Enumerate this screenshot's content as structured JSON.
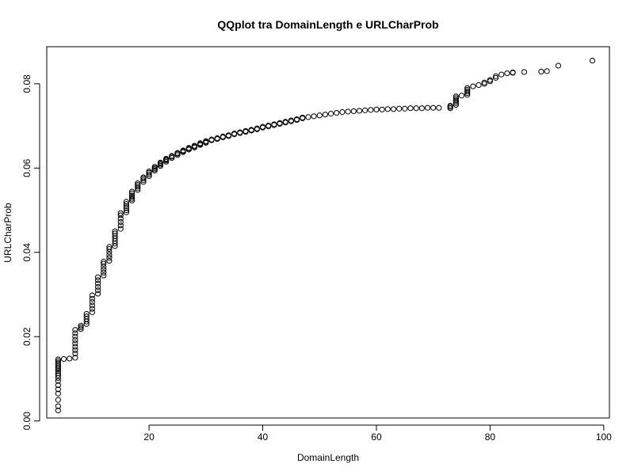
{
  "chart_data": {
    "type": "scatter",
    "title": "QQplot tra DomainLength e URLCharProb",
    "xlabel": "DomainLength",
    "ylabel": "URLCharProb",
    "xlim": [
      2,
      101
    ],
    "ylim": [
      0.0007,
      0.0888
    ],
    "xticks": [
      20,
      40,
      60,
      80,
      100
    ],
    "yticks": [
      0.0,
      0.02,
      0.04,
      0.06,
      0.08
    ],
    "xtick_labels": [
      "20",
      "40",
      "60",
      "80",
      "100"
    ],
    "ytick_labels": [
      "0.00",
      "0.02",
      "0.04",
      "0.06",
      "0.08"
    ],
    "grid": false,
    "legend": "none",
    "marker": "open-circle",
    "points": [
      [
        4,
        0.0025
      ],
      [
        4,
        0.0035
      ],
      [
        4,
        0.005
      ],
      [
        4,
        0.0065
      ],
      [
        4,
        0.0075
      ],
      [
        4,
        0.0085
      ],
      [
        4,
        0.0095
      ],
      [
        4,
        0.0102
      ],
      [
        4,
        0.0108
      ],
      [
        4,
        0.0113
      ],
      [
        4,
        0.0118
      ],
      [
        4,
        0.0122
      ],
      [
        4,
        0.0126
      ],
      [
        4,
        0.013
      ],
      [
        4,
        0.0134
      ],
      [
        4,
        0.0138
      ],
      [
        4,
        0.0142
      ],
      [
        4,
        0.0146
      ],
      [
        5,
        0.0147
      ],
      [
        6,
        0.0148
      ],
      [
        7,
        0.015
      ],
      [
        7,
        0.016
      ],
      [
        7,
        0.0168
      ],
      [
        7,
        0.0176
      ],
      [
        7,
        0.0184
      ],
      [
        7,
        0.0192
      ],
      [
        7,
        0.02
      ],
      [
        7,
        0.0208
      ],
      [
        7,
        0.0216
      ],
      [
        8,
        0.0218
      ],
      [
        8,
        0.0222
      ],
      [
        8,
        0.0226
      ],
      [
        9,
        0.023
      ],
      [
        9,
        0.0236
      ],
      [
        9,
        0.0242
      ],
      [
        9,
        0.0248
      ],
      [
        9,
        0.0254
      ],
      [
        10,
        0.0258
      ],
      [
        10,
        0.0266
      ],
      [
        10,
        0.0274
      ],
      [
        10,
        0.0282
      ],
      [
        10,
        0.029
      ],
      [
        10,
        0.0298
      ],
      [
        11,
        0.0302
      ],
      [
        11,
        0.031
      ],
      [
        11,
        0.0318
      ],
      [
        11,
        0.0326
      ],
      [
        11,
        0.0334
      ],
      [
        11,
        0.0341
      ],
      [
        12,
        0.0345
      ],
      [
        12,
        0.0352
      ],
      [
        12,
        0.0359
      ],
      [
        12,
        0.0366
      ],
      [
        12,
        0.0373
      ],
      [
        12,
        0.0378
      ],
      [
        13,
        0.038
      ],
      [
        13,
        0.0387
      ],
      [
        13,
        0.0394
      ],
      [
        13,
        0.0401
      ],
      [
        13,
        0.0408
      ],
      [
        13,
        0.0413
      ],
      [
        14,
        0.0415
      ],
      [
        14,
        0.0421
      ],
      [
        14,
        0.0427
      ],
      [
        14,
        0.0433
      ],
      [
        14,
        0.0439
      ],
      [
        14,
        0.0445
      ],
      [
        14,
        0.045
      ],
      [
        15,
        0.0456
      ],
      [
        15,
        0.0464
      ],
      [
        15,
        0.0472
      ],
      [
        15,
        0.048
      ],
      [
        15,
        0.0488
      ],
      [
        15,
        0.0493
      ],
      [
        16,
        0.0495
      ],
      [
        16,
        0.05
      ],
      [
        16,
        0.0505
      ],
      [
        16,
        0.051
      ],
      [
        16,
        0.0515
      ],
      [
        16,
        0.052
      ],
      [
        17,
        0.0523
      ],
      [
        17,
        0.0527
      ],
      [
        17,
        0.0531
      ],
      [
        17,
        0.0535
      ],
      [
        17,
        0.054
      ],
      [
        17,
        0.0544
      ],
      [
        18,
        0.0548
      ],
      [
        18,
        0.0552
      ],
      [
        18,
        0.0556
      ],
      [
        18,
        0.056
      ],
      [
        18,
        0.0564
      ],
      [
        19,
        0.0567
      ],
      [
        19,
        0.0571
      ],
      [
        19,
        0.0575
      ],
      [
        19,
        0.0578
      ],
      [
        20,
        0.0581
      ],
      [
        20,
        0.0585
      ],
      [
        20,
        0.0589
      ],
      [
        20,
        0.0592
      ],
      [
        21,
        0.0594
      ],
      [
        21,
        0.0597
      ],
      [
        21,
        0.06
      ],
      [
        21,
        0.0603
      ],
      [
        22,
        0.0605
      ],
      [
        22,
        0.0608
      ],
      [
        22,
        0.0611
      ],
      [
        22,
        0.0613
      ],
      [
        23,
        0.0615
      ],
      [
        23,
        0.0618
      ],
      [
        23,
        0.062
      ],
      [
        23,
        0.0622
      ],
      [
        24,
        0.0624
      ],
      [
        24,
        0.0627
      ],
      [
        24,
        0.0629
      ],
      [
        25,
        0.0631
      ],
      [
        25,
        0.0634
      ],
      [
        25,
        0.0636
      ],
      [
        26,
        0.0638
      ],
      [
        26,
        0.064
      ],
      [
        26,
        0.0642
      ],
      [
        27,
        0.0644
      ],
      [
        27,
        0.0646
      ],
      [
        27,
        0.0648
      ],
      [
        28,
        0.0649
      ],
      [
        28,
        0.0651
      ],
      [
        28,
        0.0653
      ],
      [
        29,
        0.0655
      ],
      [
        29,
        0.0657
      ],
      [
        29,
        0.0659
      ],
      [
        30,
        0.066
      ],
      [
        30,
        0.0662
      ],
      [
        30,
        0.0664
      ],
      [
        31,
        0.0666
      ],
      [
        31,
        0.0668
      ],
      [
        32,
        0.0669
      ],
      [
        32,
        0.0671
      ],
      [
        33,
        0.0673
      ],
      [
        33,
        0.0675
      ],
      [
        34,
        0.0676
      ],
      [
        34,
        0.0678
      ],
      [
        35,
        0.068
      ],
      [
        35,
        0.0682
      ],
      [
        36,
        0.0683
      ],
      [
        36,
        0.0685
      ],
      [
        37,
        0.0686
      ],
      [
        37,
        0.0688
      ],
      [
        38,
        0.0689
      ],
      [
        38,
        0.0691
      ],
      [
        39,
        0.0692
      ],
      [
        39,
        0.0694
      ],
      [
        40,
        0.0696
      ],
      [
        40,
        0.0698
      ],
      [
        41,
        0.0699
      ],
      [
        41,
        0.0701
      ],
      [
        42,
        0.0702
      ],
      [
        42,
        0.0704
      ],
      [
        43,
        0.0705
      ],
      [
        43,
        0.0707
      ],
      [
        44,
        0.0708
      ],
      [
        44,
        0.071
      ],
      [
        45,
        0.0711
      ],
      [
        45,
        0.0713
      ],
      [
        46,
        0.0714
      ],
      [
        46,
        0.0716
      ],
      [
        47,
        0.0718
      ],
      [
        47,
        0.072
      ],
      [
        48,
        0.0721
      ],
      [
        49,
        0.0723
      ],
      [
        50,
        0.0725
      ],
      [
        51,
        0.0727
      ],
      [
        52,
        0.0729
      ],
      [
        53,
        0.0731
      ],
      [
        54,
        0.0733
      ],
      [
        55,
        0.0734
      ],
      [
        56,
        0.0735
      ],
      [
        57,
        0.0736
      ],
      [
        58,
        0.0737
      ],
      [
        59,
        0.0738
      ],
      [
        60,
        0.0739
      ],
      [
        61,
        0.0739
      ],
      [
        62,
        0.074
      ],
      [
        63,
        0.074
      ],
      [
        64,
        0.0741
      ],
      [
        65,
        0.0741
      ],
      [
        66,
        0.0742
      ],
      [
        67,
        0.0742
      ],
      [
        68,
        0.0742
      ],
      [
        69,
        0.0743
      ],
      [
        70,
        0.0743
      ],
      [
        71,
        0.0743
      ],
      [
        73,
        0.0742
      ],
      [
        73,
        0.0745
      ],
      [
        73,
        0.0748
      ],
      [
        74,
        0.075
      ],
      [
        74,
        0.0754
      ],
      [
        74,
        0.0758
      ],
      [
        74,
        0.0762
      ],
      [
        74,
        0.0766
      ],
      [
        74,
        0.077
      ],
      [
        75,
        0.0772
      ],
      [
        76,
        0.0774
      ],
      [
        76,
        0.0778
      ],
      [
        76,
        0.0782
      ],
      [
        76,
        0.0786
      ],
      [
        76,
        0.079
      ],
      [
        77,
        0.0794
      ],
      [
        78,
        0.0797
      ],
      [
        79,
        0.08
      ],
      [
        79,
        0.0803
      ],
      [
        80,
        0.0806
      ],
      [
        80,
        0.0809
      ],
      [
        81,
        0.0814
      ],
      [
        81,
        0.0818
      ],
      [
        82,
        0.0822
      ],
      [
        83,
        0.0825
      ],
      [
        84,
        0.0826
      ],
      [
        84,
        0.0827
      ],
      [
        86,
        0.0828
      ],
      [
        89,
        0.0829
      ],
      [
        90,
        0.083
      ],
      [
        92,
        0.0843
      ],
      [
        98,
        0.0855
      ]
    ]
  }
}
